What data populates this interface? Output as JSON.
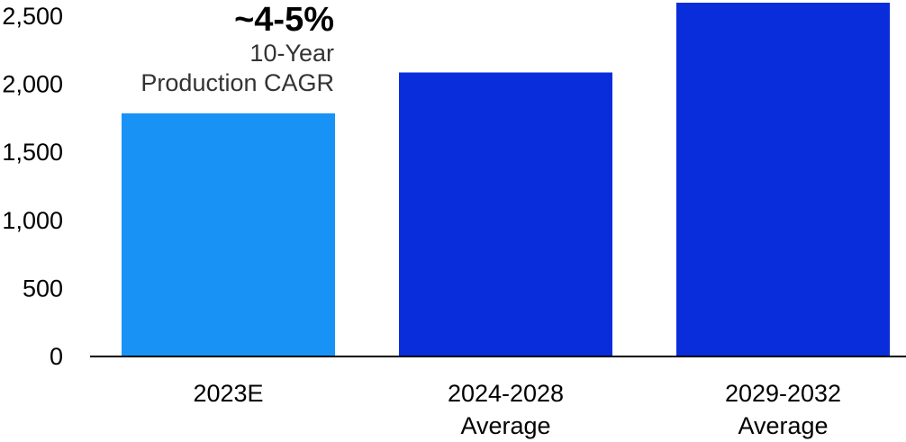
{
  "chart_data": {
    "type": "bar",
    "categories": [
      [
        "2023E"
      ],
      [
        "2024-2028",
        "Average"
      ],
      [
        "2029-2032",
        "Average"
      ]
    ],
    "values": [
      1780,
      2080,
      2600
    ],
    "colors": [
      "#1893f5",
      "#0a2ddb",
      "#0a2ddb"
    ],
    "ylim": [
      0,
      2500
    ],
    "yticks": [
      "0",
      "500",
      "1,000",
      "1,500",
      "2,000",
      "2,500"
    ],
    "ytick_values": [
      0,
      500,
      1000,
      1500,
      2000,
      2500
    ],
    "grid": false,
    "annotation": {
      "headline": "~4-5%",
      "line1": "10-Year",
      "line2": "Production CAGR"
    }
  }
}
